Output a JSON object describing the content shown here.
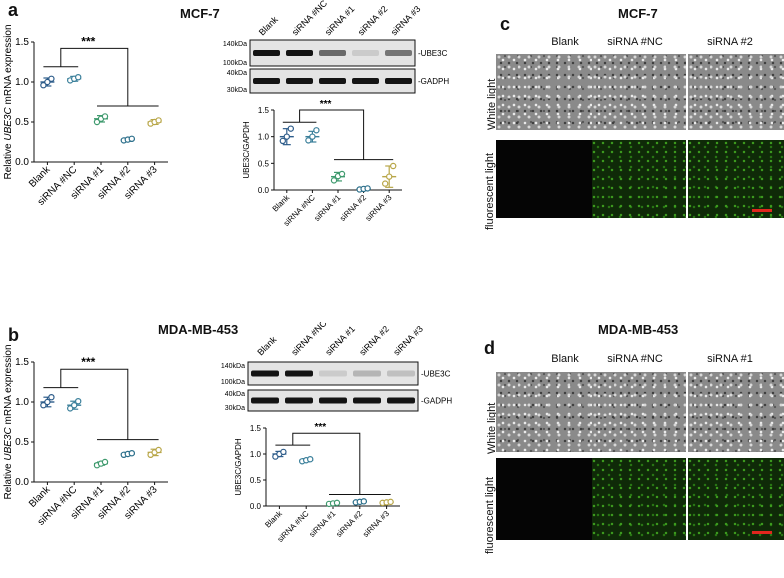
{
  "panel_a": {
    "letter": "a",
    "title": "MCF-7"
  },
  "panel_b": {
    "letter": "b",
    "title": "MDA-MB-453"
  },
  "panel_c": {
    "letter": "c",
    "title": "MCF-7",
    "columns": [
      "Blank",
      "siRNA #NC",
      "siRNA #2"
    ],
    "rows": [
      "White light",
      "fluorescent light"
    ]
  },
  "panel_d": {
    "letter": "d",
    "title": "MDA-MB-453",
    "columns": [
      "Blank",
      "siRNA #NC",
      "siRNA #1"
    ],
    "rows": [
      "White light",
      "fluorescent light"
    ]
  },
  "blot_a": {
    "lanes": [
      "Blank",
      "siRNA #NC",
      "siRNA #1",
      "siRNA #2",
      "siRNA #3"
    ],
    "marker_top": [
      "140kDa",
      "100kDa"
    ],
    "marker_bottom": [
      "40kDa",
      "30kDa"
    ],
    "band_top": "UBE3C",
    "band_bottom": "GADPH",
    "band_intensity_top": [
      1.0,
      1.0,
      0.6,
      0.15,
      0.55
    ],
    "band_intensity_bottom": [
      1,
      1,
      1,
      1,
      1
    ]
  },
  "blot_b": {
    "lanes": [
      "Blank",
      "siRNA #NC",
      "siRNA #1",
      "siRNA #2",
      "siRNA #3"
    ],
    "marker_top": [
      "140kDa",
      "100kDa"
    ],
    "marker_bottom": [
      "40kDa",
      "30kDa"
    ],
    "band_top": "UBE3C",
    "band_bottom": "GADPH",
    "band_intensity_top": [
      1.0,
      1.0,
      0.15,
      0.25,
      0.2
    ],
    "band_intensity_bottom": [
      1,
      1,
      1,
      1,
      1
    ]
  },
  "colors": {
    "blank": "#2d5c8a",
    "nc": "#3a7f9a",
    "si1": "#3f9a6e",
    "si2": "#2a6e8a",
    "si3": "#b8a648"
  },
  "chart_data": [
    {
      "id": "a_qpcr",
      "type": "scatter",
      "categories": [
        "Blank",
        "siRNA #NC",
        "siRNA #1",
        "siRNA #2",
        "siRNA #3"
      ],
      "means": [
        1.0,
        1.04,
        0.54,
        0.28,
        0.5
      ],
      "sd": [
        0.05,
        0.03,
        0.04,
        0.02,
        0.03
      ],
      "points": [
        [
          0.96,
          1.0,
          1.04
        ],
        [
          1.02,
          1.04,
          1.06
        ],
        [
          0.5,
          0.54,
          0.57
        ],
        [
          0.27,
          0.28,
          0.29
        ],
        [
          0.48,
          0.5,
          0.52
        ]
      ],
      "ylabel_pre": "Relative ",
      "ylabel_ital": "UBE3C",
      "ylabel_post": " mRNA expression",
      "ylim": [
        0,
        1.5
      ],
      "yticks": [
        "0.0",
        "0.5",
        "1.0",
        "1.5"
      ],
      "sig": "***"
    },
    {
      "id": "a_blot",
      "type": "scatter",
      "categories": [
        "Blank",
        "siRNA #NC",
        "siRNA #1",
        "siRNA #2",
        "siRNA #3"
      ],
      "means": [
        1.0,
        1.0,
        0.25,
        0.02,
        0.25
      ],
      "sd": [
        0.15,
        0.1,
        0.08,
        0.02,
        0.2
      ],
      "points": [
        [
          0.92,
          1.0,
          1.15
        ],
        [
          0.93,
          1.0,
          1.12
        ],
        [
          0.18,
          0.26,
          0.3
        ],
        [
          0.01,
          0.02,
          0.03
        ],
        [
          0.12,
          0.25,
          0.45
        ]
      ],
      "ylabel": "UBE3C/GAPDH",
      "ylim": [
        0,
        1.5
      ],
      "yticks": [
        "0.0",
        "0.5",
        "1.0",
        "1.5"
      ],
      "sig": "***"
    },
    {
      "id": "b_qpcr",
      "type": "scatter",
      "categories": [
        "Blank",
        "siRNA #NC",
        "siRNA #1",
        "siRNA #2",
        "siRNA #3"
      ],
      "means": [
        1.0,
        0.96,
        0.23,
        0.35,
        0.37
      ],
      "sd": [
        0.06,
        0.05,
        0.02,
        0.02,
        0.04
      ],
      "points": [
        [
          0.96,
          1.0,
          1.06
        ],
        [
          0.92,
          0.96,
          1.01
        ],
        [
          0.21,
          0.23,
          0.25
        ],
        [
          0.34,
          0.35,
          0.36
        ],
        [
          0.34,
          0.37,
          0.4
        ]
      ],
      "ylabel_pre": "Relative ",
      "ylabel_ital": "UBE3C",
      "ylabel_post": " mRNA expression",
      "ylim": [
        0,
        1.5
      ],
      "yticks": [
        "0.0",
        "0.5",
        "1.0",
        "1.5"
      ],
      "sig": "***"
    },
    {
      "id": "b_blot",
      "type": "scatter",
      "categories": [
        "Blank",
        "siRNA #NC",
        "siRNA #1",
        "siRNA #2",
        "siRNA #3"
      ],
      "means": [
        1.0,
        0.88,
        0.05,
        0.08,
        0.07
      ],
      "sd": [
        0.05,
        0.03,
        0.02,
        0.02,
        0.02
      ],
      "points": [
        [
          0.95,
          1.0,
          1.04
        ],
        [
          0.86,
          0.88,
          0.9
        ],
        [
          0.04,
          0.05,
          0.06
        ],
        [
          0.07,
          0.08,
          0.09
        ],
        [
          0.06,
          0.07,
          0.08
        ]
      ],
      "ylabel": "UBE3C/GAPDH",
      "ylim": [
        0,
        1.5
      ],
      "yticks": [
        "0.0",
        "0.5",
        "1.0",
        "1.5"
      ],
      "sig": "***"
    }
  ]
}
